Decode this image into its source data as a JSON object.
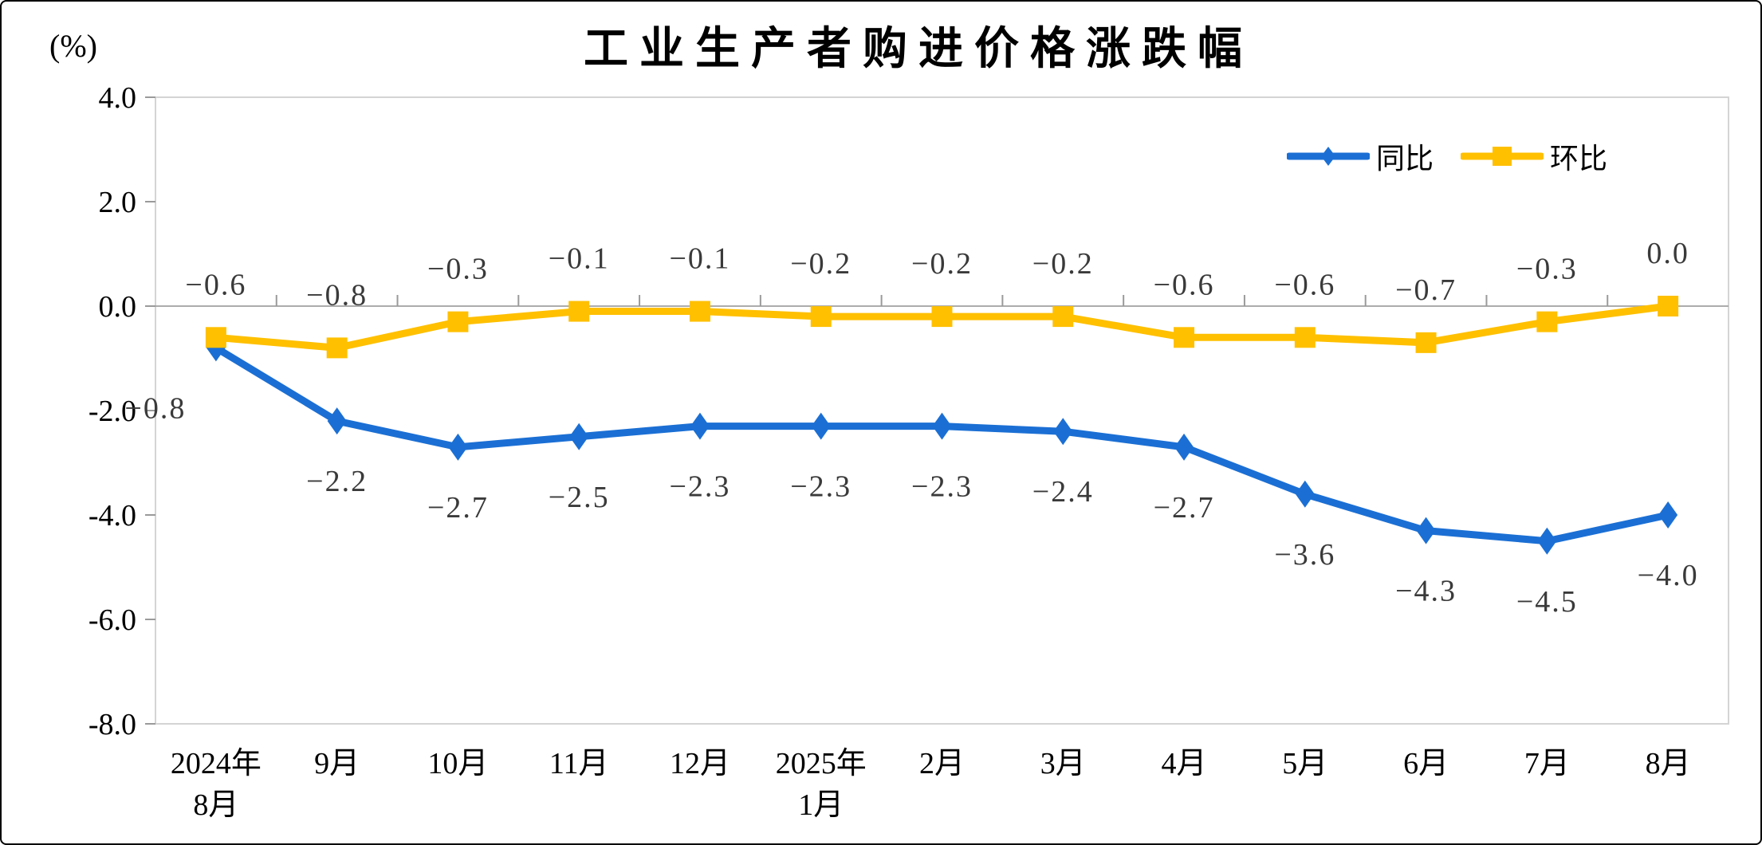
{
  "title": "工业生产者购进价格涨跌幅",
  "unit_label": "(%)",
  "legend": {
    "tongbi": "同比",
    "huanbi": "环比"
  },
  "colors": {
    "tongbi": "#1b6fd4",
    "huanbi": "#ffc000",
    "data_label": "#3a3a3a",
    "zero_axis_line": "#acacac",
    "plot_border": "#d4d4d4",
    "tick": "#9a9a9a",
    "text": "#000000"
  },
  "chart_data": {
    "type": "line",
    "title": "工业生产者购进价格涨跌幅",
    "ylabel_unit": "(%)",
    "ylim": [
      -8.0,
      4.0
    ],
    "y_ticks": [
      "4.0",
      "2.0",
      "0.0",
      "-2.0",
      "-4.0",
      "-6.0",
      "-8.0"
    ],
    "grid": false,
    "legend_position": "top-right-inside",
    "categories": [
      [
        "2024年",
        "8月"
      ],
      [
        "9月"
      ],
      [
        "10月"
      ],
      [
        "11月"
      ],
      [
        "12月"
      ],
      [
        "2025年",
        "1月"
      ],
      [
        "2月"
      ],
      [
        "3月"
      ],
      [
        "4月"
      ],
      [
        "5月"
      ],
      [
        "6月"
      ],
      [
        "7月"
      ],
      [
        "8月"
      ]
    ],
    "series": [
      {
        "name": "同比",
        "color": "#1b6fd4",
        "marker": "diamond",
        "label_position": "below",
        "values": [
          -0.8,
          -2.2,
          -2.7,
          -2.5,
          -2.3,
          -2.3,
          -2.3,
          -2.4,
          -2.7,
          -3.6,
          -4.3,
          -4.5,
          -4.0
        ],
        "labels": [
          "−0.8",
          "−2.2",
          "−2.7",
          "−2.5",
          "−2.3",
          "−2.3",
          "−2.3",
          "−2.4",
          "−2.7",
          "−3.6",
          "−4.3",
          "−4.5",
          "−4.0"
        ]
      },
      {
        "name": "环比",
        "color": "#ffc000",
        "marker": "square",
        "label_position": "above",
        "values": [
          -0.6,
          -0.8,
          -0.3,
          -0.1,
          -0.1,
          -0.2,
          -0.2,
          -0.2,
          -0.6,
          -0.6,
          -0.7,
          -0.3,
          0.0
        ],
        "labels": [
          "−0.6",
          "−0.8",
          "−0.3",
          "−0.1",
          "−0.1",
          "−0.2",
          "−0.2",
          "−0.2",
          "−0.6",
          "−0.6",
          "−0.7",
          "−0.3",
          "0.0"
        ]
      }
    ]
  }
}
